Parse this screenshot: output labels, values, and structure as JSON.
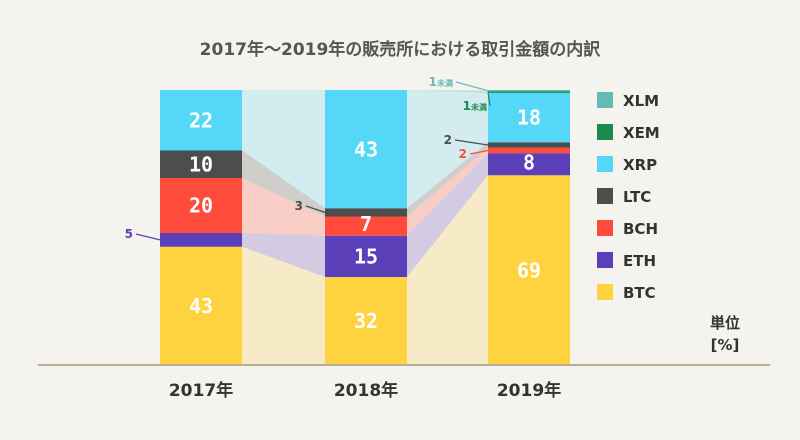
{
  "chart_data": {
    "type": "bar",
    "stacked": true,
    "title": "2017年〜2019年の販売所における取引金額の内訳",
    "categories": [
      "2017年",
      "2018年",
      "2019年"
    ],
    "series": [
      {
        "name": "BTC",
        "values": [
          43,
          32,
          69
        ],
        "color": "#ffd23f"
      },
      {
        "name": "ETH",
        "values": [
          5,
          15,
          8
        ],
        "color": "#5a3fb8"
      },
      {
        "name": "BCH",
        "values": [
          20,
          7,
          2
        ],
        "color": "#ff4b3a"
      },
      {
        "name": "LTC",
        "values": [
          10,
          3,
          2
        ],
        "color": "#4d4d4d"
      },
      {
        "name": "XRP",
        "values": [
          22,
          43,
          18
        ],
        "color": "#55d8f7"
      },
      {
        "name": "XEM",
        "values": [
          0,
          0,
          0.5
        ],
        "color": "#1a8a4f"
      },
      {
        "name": "XLM",
        "values": [
          0,
          0,
          0.5
        ],
        "color": "#62bcb4"
      }
    ],
    "segment_labels": [
      [
        "43",
        "5",
        "20",
        "10",
        "22",
        "",
        ""
      ],
      [
        "32",
        "15",
        "7",
        "3",
        "43",
        "",
        ""
      ],
      [
        "69",
        "8",
        "2",
        "2",
        "18",
        "1未満",
        "1未満"
      ]
    ],
    "legend_order": [
      "XLM",
      "XEM",
      "XRP",
      "LTC",
      "BCH",
      "ETH",
      "BTC"
    ],
    "legend_position": "right",
    "unit_label_line1": "単位",
    "unit_label_line2": "[%]",
    "ylim": [
      0,
      100
    ],
    "grid": false
  }
}
